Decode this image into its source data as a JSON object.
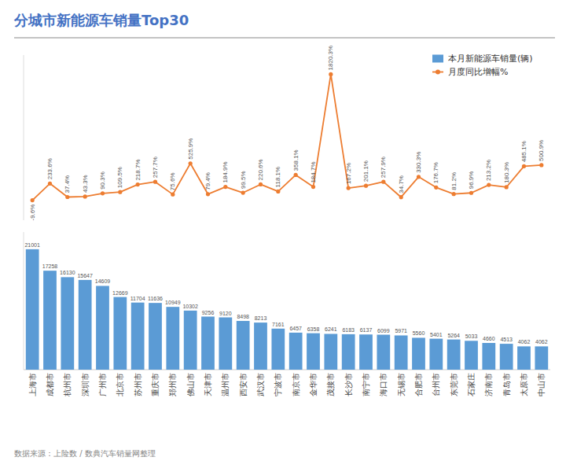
{
  "chart_data": {
    "type": "bar",
    "title": "分城市新能源车销量Top30",
    "subtitle": "数据来源：上险数 / 数典汽车销量网整理",
    "categories": [
      "上海市",
      "成都市",
      "杭州市",
      "深圳市",
      "广州市",
      "北京市",
      "苏州市",
      "重庆市",
      "郑州市",
      "佛山市",
      "天津市",
      "温州市",
      "西安市",
      "武汉市",
      "宁波市",
      "南京市",
      "金华市",
      "茂接市",
      "长沙市",
      "南宁市",
      "海口市",
      "无锡市",
      "合肥市",
      "台州市",
      "东莞市",
      "石家庄",
      "济南市",
      "青岛市",
      "太原市",
      "中山市"
    ],
    "series": [
      {
        "name": "本月新能源车销量(辆)",
        "type": "bar",
        "color": "#5B9BD5",
        "values": [
          21001,
          17258,
          16130,
          15647,
          14609,
          12669,
          11704,
          11636,
          10949,
          10302,
          9256,
          9120,
          8498,
          8213,
          7161,
          6457,
          6358,
          6241,
          6183,
          6137,
          6099,
          5971,
          5560,
          5401,
          5264,
          5033,
          4660,
          4513,
          4062,
          4062
        ]
      },
      {
        "name": "月度同比增幅%",
        "type": "line",
        "color": "#ED7D31",
        "marker": "circle",
        "axis": "y2",
        "values": [
          -9.6,
          233.6,
          37.4,
          43.3,
          90.3,
          109.5,
          218.7,
          257.7,
          75.6,
          525.9,
          79.4,
          184.9,
          99.5,
          220.6,
          118.1,
          358.1,
          184.7,
          1820.3,
          167.2,
          201.1,
          257.9,
          34.7,
          330.3,
          176.7,
          81.2,
          96.9,
          213.2,
          180.3,
          485.1,
          500.9
        ],
        "value_labels": [
          "-9.6%",
          "233.6%",
          "37.4%",
          "43.3%",
          "90.3%",
          "109.5%",
          "218.7%",
          "257.7%",
          "75.6%",
          "525.9%",
          "79.4%",
          "184.9%",
          "99.5%",
          "220.6%",
          "118.1%",
          "358.1%",
          "184.7%",
          "1820.3%",
          "167.2%",
          "201.1%",
          "257.9%",
          "34.7%",
          "330.3%",
          "176.7%",
          "81.2%",
          "96.9%",
          "213.2%",
          "180.3%",
          "485.1%",
          "500.9%"
        ]
      }
    ],
    "ylim": [
      0,
      24000
    ],
    "y2lim": [
      -300,
      2100
    ],
    "data_labels": true,
    "tick_labels": "x",
    "legend": "upper right"
  }
}
